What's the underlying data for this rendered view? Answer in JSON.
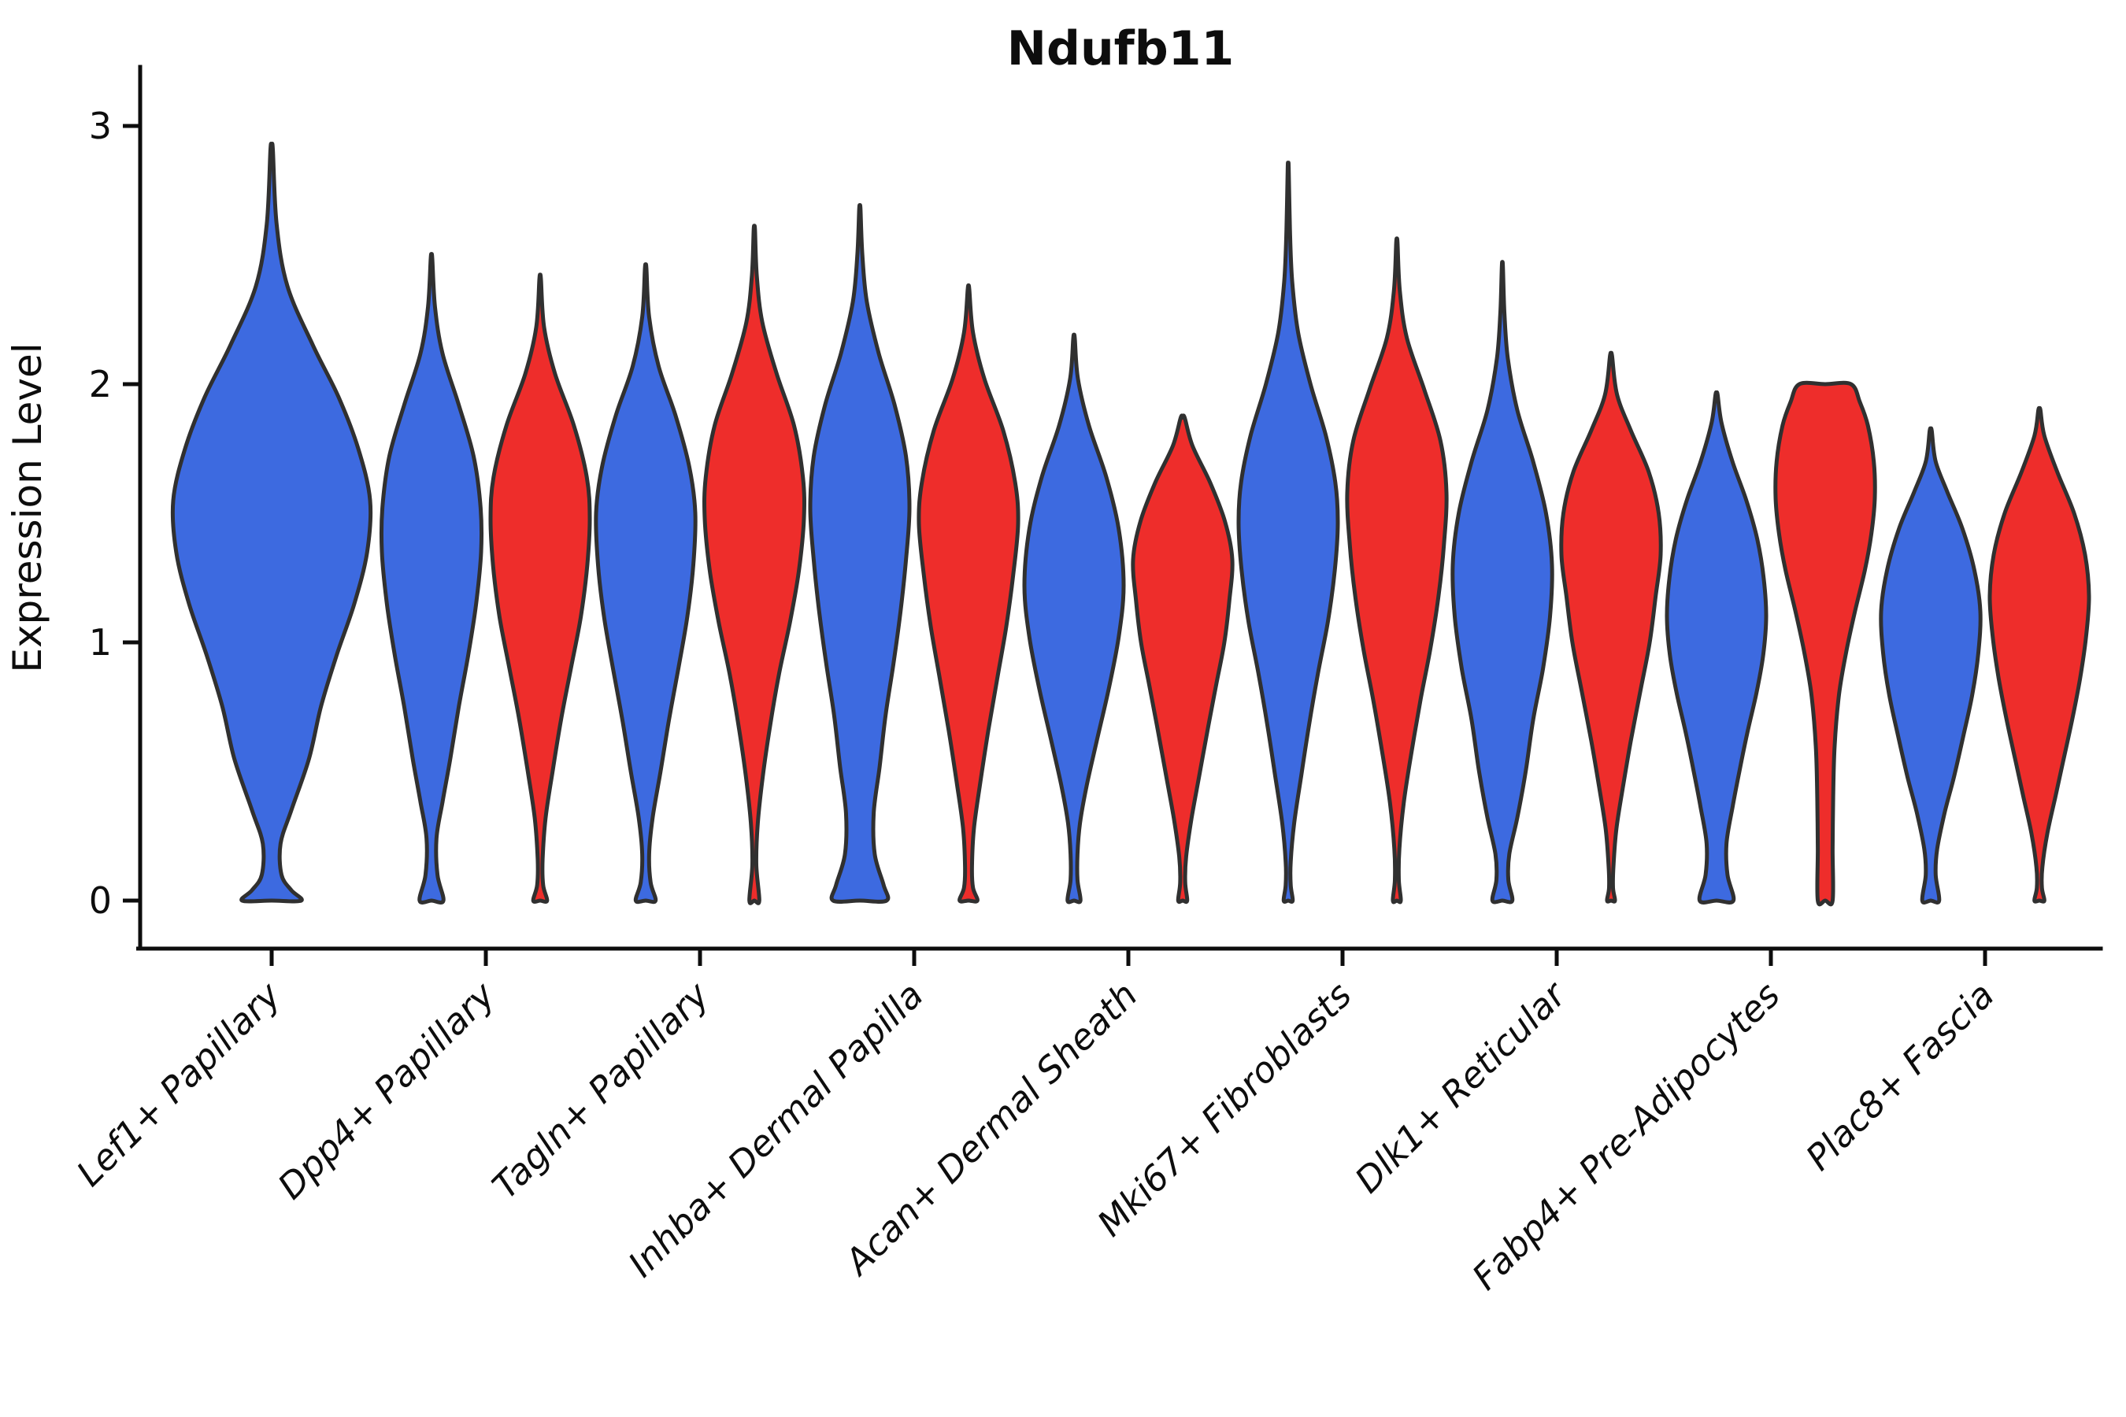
{
  "chart_data": {
    "type": "violin",
    "title": "Ndufb11",
    "ylabel": "Expression Level",
    "xlabel": "",
    "yticks": [
      0,
      1,
      2,
      3
    ],
    "ylim": [
      0,
      3
    ],
    "grid": false,
    "legend": "none",
    "colors": {
      "blue": "#3D6AE0",
      "red": "#EE2D2B",
      "outline": "#303030",
      "axis": "#0d0d0d"
    },
    "categories": [
      "Lef1+ Papillary",
      "Dpp4+ Papillary",
      "Tagln+ Papillary",
      "Inhba+ Dermal Papilla",
      "Acan+ Dermal Sheath",
      "Mki67+ Fibroblasts",
      "Dlk1+ Reticular",
      "Fabp4+ Pre-Adipocytes",
      "Plac8+ Fascia"
    ],
    "violins": [
      {
        "category": 0,
        "color": "blue",
        "side": "full",
        "max": 2.91,
        "profile": [
          [
            2.91,
            0.012
          ],
          [
            2.62,
            0.05
          ],
          [
            2.38,
            0.16
          ],
          [
            2.15,
            0.42
          ],
          [
            1.95,
            0.68
          ],
          [
            1.75,
            0.88
          ],
          [
            1.55,
            1.0
          ],
          [
            1.35,
            0.97
          ],
          [
            1.15,
            0.84
          ],
          [
            0.95,
            0.66
          ],
          [
            0.75,
            0.5
          ],
          [
            0.55,
            0.38
          ],
          [
            0.35,
            0.2
          ],
          [
            0.22,
            0.09
          ],
          [
            0.1,
            0.1
          ],
          [
            0.04,
            0.2
          ],
          [
            0,
            0.3
          ]
        ]
      },
      {
        "category": 1,
        "color": "blue",
        "side": "left",
        "max": 2.49,
        "profile": [
          [
            2.49,
            0.015
          ],
          [
            2.3,
            0.07
          ],
          [
            2.12,
            0.22
          ],
          [
            1.92,
            0.55
          ],
          [
            1.72,
            0.85
          ],
          [
            1.52,
            0.99
          ],
          [
            1.35,
            1.0
          ],
          [
            1.15,
            0.9
          ],
          [
            0.95,
            0.74
          ],
          [
            0.75,
            0.55
          ],
          [
            0.55,
            0.38
          ],
          [
            0.38,
            0.22
          ],
          [
            0.24,
            0.1
          ],
          [
            0.1,
            0.12
          ],
          [
            0,
            0.24
          ]
        ]
      },
      {
        "category": 1,
        "color": "red",
        "side": "right",
        "max": 2.41,
        "profile": [
          [
            2.41,
            0.015
          ],
          [
            2.22,
            0.08
          ],
          [
            2.04,
            0.3
          ],
          [
            1.84,
            0.68
          ],
          [
            1.64,
            0.94
          ],
          [
            1.48,
            1.0
          ],
          [
            1.3,
            0.95
          ],
          [
            1.1,
            0.82
          ],
          [
            0.9,
            0.62
          ],
          [
            0.7,
            0.42
          ],
          [
            0.5,
            0.25
          ],
          [
            0.32,
            0.11
          ],
          [
            0.16,
            0.05
          ],
          [
            0.06,
            0.06
          ],
          [
            0,
            0.14
          ]
        ]
      },
      {
        "category": 2,
        "color": "blue",
        "side": "left",
        "max": 2.45,
        "profile": [
          [
            2.45,
            0.015
          ],
          [
            2.26,
            0.07
          ],
          [
            2.07,
            0.26
          ],
          [
            1.88,
            0.6
          ],
          [
            1.68,
            0.88
          ],
          [
            1.5,
            1.0
          ],
          [
            1.3,
            0.96
          ],
          [
            1.1,
            0.84
          ],
          [
            0.9,
            0.66
          ],
          [
            0.7,
            0.47
          ],
          [
            0.5,
            0.3
          ],
          [
            0.32,
            0.14
          ],
          [
            0.18,
            0.07
          ],
          [
            0.07,
            0.1
          ],
          [
            0,
            0.2
          ]
        ]
      },
      {
        "category": 2,
        "color": "red",
        "side": "right",
        "max": 2.6,
        "profile": [
          [
            2.6,
            0.012
          ],
          [
            2.42,
            0.05
          ],
          [
            2.24,
            0.16
          ],
          [
            2.04,
            0.45
          ],
          [
            1.84,
            0.8
          ],
          [
            1.64,
            0.98
          ],
          [
            1.48,
            1.0
          ],
          [
            1.28,
            0.9
          ],
          [
            1.08,
            0.72
          ],
          [
            0.88,
            0.5
          ],
          [
            0.68,
            0.32
          ],
          [
            0.48,
            0.17
          ],
          [
            0.3,
            0.07
          ],
          [
            0.14,
            0.04
          ],
          [
            0,
            0.1
          ]
        ]
      },
      {
        "category": 3,
        "color": "blue",
        "side": "left",
        "max": 2.68,
        "profile": [
          [
            2.68,
            0.012
          ],
          [
            2.5,
            0.05
          ],
          [
            2.32,
            0.14
          ],
          [
            2.12,
            0.38
          ],
          [
            1.92,
            0.7
          ],
          [
            1.72,
            0.93
          ],
          [
            1.52,
            1.0
          ],
          [
            1.32,
            0.93
          ],
          [
            1.12,
            0.82
          ],
          [
            0.92,
            0.68
          ],
          [
            0.72,
            0.52
          ],
          [
            0.52,
            0.4
          ],
          [
            0.34,
            0.28
          ],
          [
            0.18,
            0.3
          ],
          [
            0.06,
            0.48
          ],
          [
            0,
            0.54
          ]
        ]
      },
      {
        "category": 3,
        "color": "red",
        "side": "right",
        "max": 2.37,
        "profile": [
          [
            2.37,
            0.015
          ],
          [
            2.2,
            0.09
          ],
          [
            2.02,
            0.32
          ],
          [
            1.82,
            0.7
          ],
          [
            1.62,
            0.94
          ],
          [
            1.46,
            1.0
          ],
          [
            1.26,
            0.9
          ],
          [
            1.06,
            0.76
          ],
          [
            0.86,
            0.58
          ],
          [
            0.66,
            0.4
          ],
          [
            0.46,
            0.24
          ],
          [
            0.28,
            0.11
          ],
          [
            0.13,
            0.07
          ],
          [
            0.05,
            0.09
          ],
          [
            0,
            0.18
          ]
        ]
      },
      {
        "category": 4,
        "color": "blue",
        "side": "left",
        "max": 2.18,
        "profile": [
          [
            2.18,
            0.015
          ],
          [
            2.02,
            0.08
          ],
          [
            1.84,
            0.3
          ],
          [
            1.64,
            0.65
          ],
          [
            1.44,
            0.9
          ],
          [
            1.22,
            1.0
          ],
          [
            1.02,
            0.9
          ],
          [
            0.82,
            0.7
          ],
          [
            0.62,
            0.46
          ],
          [
            0.45,
            0.26
          ],
          [
            0.3,
            0.12
          ],
          [
            0.18,
            0.07
          ],
          [
            0.08,
            0.07
          ],
          [
            0,
            0.13
          ]
        ]
      },
      {
        "category": 4,
        "color": "red",
        "side": "right",
        "max": 1.87,
        "profile": [
          [
            1.87,
            0.04
          ],
          [
            1.76,
            0.2
          ],
          [
            1.62,
            0.55
          ],
          [
            1.47,
            0.85
          ],
          [
            1.32,
            1.0
          ],
          [
            1.16,
            0.94
          ],
          [
            1.0,
            0.84
          ],
          [
            0.84,
            0.68
          ],
          [
            0.68,
            0.52
          ],
          [
            0.5,
            0.35
          ],
          [
            0.32,
            0.18
          ],
          [
            0.17,
            0.07
          ],
          [
            0.07,
            0.05
          ],
          [
            0,
            0.09
          ]
        ]
      },
      {
        "category": 5,
        "color": "blue",
        "side": "left",
        "max": 2.84,
        "profile": [
          [
            2.84,
            0.01
          ],
          [
            2.6,
            0.035
          ],
          [
            2.4,
            0.08
          ],
          [
            2.2,
            0.2
          ],
          [
            2.0,
            0.45
          ],
          [
            1.8,
            0.76
          ],
          [
            1.62,
            0.95
          ],
          [
            1.46,
            1.0
          ],
          [
            1.28,
            0.94
          ],
          [
            1.08,
            0.8
          ],
          [
            0.88,
            0.6
          ],
          [
            0.68,
            0.42
          ],
          [
            0.48,
            0.26
          ],
          [
            0.3,
            0.12
          ],
          [
            0.15,
            0.05
          ],
          [
            0.06,
            0.05
          ],
          [
            0,
            0.09
          ]
        ]
      },
      {
        "category": 5,
        "color": "red",
        "side": "right",
        "max": 2.55,
        "profile": [
          [
            2.55,
            0.012
          ],
          [
            2.36,
            0.06
          ],
          [
            2.18,
            0.2
          ],
          [
            1.98,
            0.55
          ],
          [
            1.78,
            0.88
          ],
          [
            1.58,
            1.0
          ],
          [
            1.38,
            0.95
          ],
          [
            1.18,
            0.84
          ],
          [
            0.98,
            0.68
          ],
          [
            0.78,
            0.48
          ],
          [
            0.58,
            0.3
          ],
          [
            0.38,
            0.14
          ],
          [
            0.2,
            0.05
          ],
          [
            0.08,
            0.04
          ],
          [
            0,
            0.08
          ]
        ]
      },
      {
        "category": 6,
        "color": "blue",
        "side": "left",
        "max": 2.46,
        "profile": [
          [
            2.46,
            0.01
          ],
          [
            2.28,
            0.04
          ],
          [
            2.1,
            0.11
          ],
          [
            1.9,
            0.3
          ],
          [
            1.7,
            0.62
          ],
          [
            1.5,
            0.88
          ],
          [
            1.3,
            1.0
          ],
          [
            1.1,
            0.96
          ],
          [
            0.9,
            0.82
          ],
          [
            0.7,
            0.62
          ],
          [
            0.5,
            0.47
          ],
          [
            0.32,
            0.3
          ],
          [
            0.18,
            0.14
          ],
          [
            0.08,
            0.12
          ],
          [
            0,
            0.2
          ]
        ]
      },
      {
        "category": 6,
        "color": "red",
        "side": "right",
        "max": 2.11,
        "profile": [
          [
            2.11,
            0.02
          ],
          [
            1.96,
            0.12
          ],
          [
            1.82,
            0.4
          ],
          [
            1.66,
            0.76
          ],
          [
            1.5,
            0.96
          ],
          [
            1.34,
            1.0
          ],
          [
            1.18,
            0.9
          ],
          [
            1.0,
            0.78
          ],
          [
            0.82,
            0.6
          ],
          [
            0.62,
            0.4
          ],
          [
            0.44,
            0.24
          ],
          [
            0.28,
            0.11
          ],
          [
            0.14,
            0.05
          ],
          [
            0.05,
            0.04
          ],
          [
            0,
            0.08
          ]
        ]
      },
      {
        "category": 7,
        "color": "blue",
        "side": "left",
        "max": 1.96,
        "profile": [
          [
            1.96,
            0.02
          ],
          [
            1.85,
            0.1
          ],
          [
            1.7,
            0.32
          ],
          [
            1.55,
            0.6
          ],
          [
            1.4,
            0.82
          ],
          [
            1.25,
            0.95
          ],
          [
            1.1,
            1.0
          ],
          [
            0.95,
            0.94
          ],
          [
            0.8,
            0.8
          ],
          [
            0.65,
            0.62
          ],
          [
            0.5,
            0.46
          ],
          [
            0.36,
            0.32
          ],
          [
            0.22,
            0.2
          ],
          [
            0.1,
            0.22
          ],
          [
            0,
            0.34
          ]
        ]
      },
      {
        "category": 7,
        "color": "red",
        "side": "right",
        "max": 2.0,
        "flat_top": true,
        "profile": [
          [
            2.0,
            0.52
          ],
          [
            1.93,
            0.7
          ],
          [
            1.84,
            0.86
          ],
          [
            1.7,
            0.98
          ],
          [
            1.56,
            1.0
          ],
          [
            1.42,
            0.93
          ],
          [
            1.28,
            0.8
          ],
          [
            1.12,
            0.6
          ],
          [
            0.96,
            0.42
          ],
          [
            0.8,
            0.28
          ],
          [
            0.6,
            0.19
          ],
          [
            0.4,
            0.16
          ],
          [
            0.2,
            0.15
          ],
          [
            0,
            0.15
          ]
        ]
      },
      {
        "category": 8,
        "color": "blue",
        "side": "left",
        "max": 1.82,
        "profile": [
          [
            1.82,
            0.02
          ],
          [
            1.7,
            0.1
          ],
          [
            1.58,
            0.34
          ],
          [
            1.44,
            0.64
          ],
          [
            1.28,
            0.88
          ],
          [
            1.12,
            1.0
          ],
          [
            0.96,
            0.96
          ],
          [
            0.8,
            0.84
          ],
          [
            0.64,
            0.66
          ],
          [
            0.48,
            0.47
          ],
          [
            0.34,
            0.28
          ],
          [
            0.2,
            0.13
          ],
          [
            0.1,
            0.1
          ],
          [
            0,
            0.17
          ]
        ]
      },
      {
        "category": 8,
        "color": "red",
        "side": "right",
        "max": 1.9,
        "profile": [
          [
            1.9,
            0.02
          ],
          [
            1.8,
            0.1
          ],
          [
            1.66,
            0.36
          ],
          [
            1.5,
            0.7
          ],
          [
            1.34,
            0.92
          ],
          [
            1.18,
            1.0
          ],
          [
            1.02,
            0.94
          ],
          [
            0.86,
            0.82
          ],
          [
            0.7,
            0.66
          ],
          [
            0.54,
            0.48
          ],
          [
            0.4,
            0.32
          ],
          [
            0.26,
            0.16
          ],
          [
            0.13,
            0.06
          ],
          [
            0.05,
            0.05
          ],
          [
            0,
            0.1
          ]
        ]
      }
    ]
  }
}
